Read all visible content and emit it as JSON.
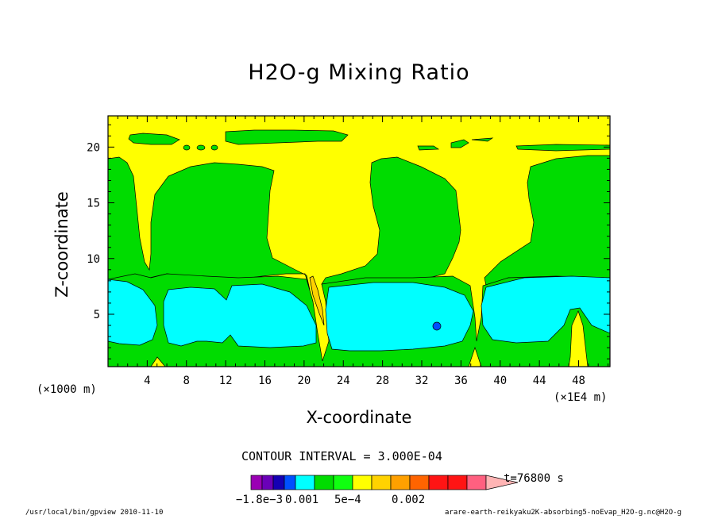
{
  "chart_data": {
    "type": "contour",
    "title": "H2O-g Mixing Ratio",
    "xlabel": "X-coordinate",
    "ylabel": "Z-coordinate",
    "x_unit_note": "(×1000 m)",
    "x_scale_note": "(×1E4 m)",
    "x_ticks": [
      4,
      8,
      12,
      16,
      20,
      24,
      28,
      32,
      36,
      40,
      44,
      48
    ],
    "y_ticks": [
      5,
      10,
      15,
      20
    ],
    "xlim": [
      0,
      51.2
    ],
    "ylim": [
      0.3,
      22.8
    ],
    "contour_interval": "CONTOUR INTERVAL = 3.000E-04",
    "time_label": "t=76800 s",
    "colorbar": {
      "colors": [
        "#9a00b4",
        "#6a00b8",
        "#1400b4",
        "#0050ff",
        "#00ffff",
        "#00dc00",
        "#10ff10",
        "#ffff00",
        "#ffd200",
        "#ffa000",
        "#ff6400",
        "#ff1414",
        "#ff1414",
        "#ff6080",
        "#ffb4b4"
      ],
      "labels": [
        "−1.8e−3",
        "0.001",
        "5e−4",
        "0.002"
      ]
    }
  },
  "footer": {
    "left": "/usr/local/bin/gpview  2010-11-10",
    "right": "arare-earth-reikyaku2K-absorbing5-noEvap_H2O-g.nc@H2O-g"
  }
}
